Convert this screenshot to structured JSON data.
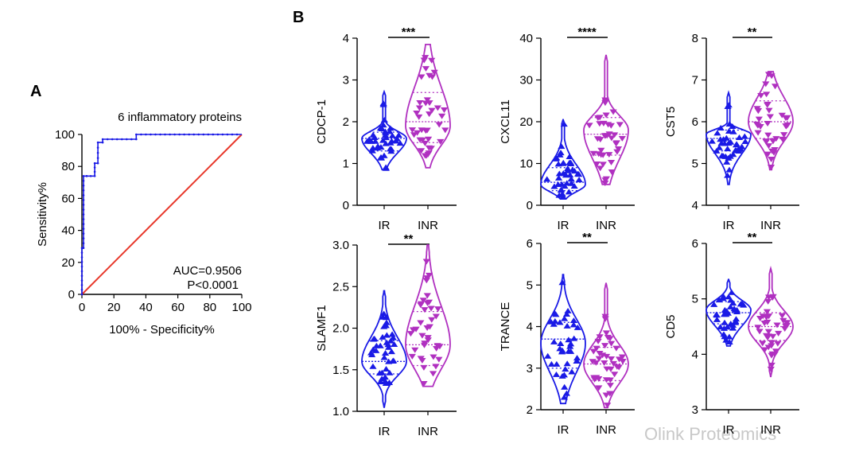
{
  "colors": {
    "ir": "#1a1ae6",
    "inr": "#b030c0",
    "reference": "#e8372a",
    "axis": "#000000",
    "watermark": "#c8c8c8"
  },
  "panel_a_label": "A",
  "panel_b_label": "B",
  "watermark": "Olink Proteomics",
  "chart_data": [
    {
      "type": "line",
      "panel": "A",
      "title": "6 inflammatory proteins",
      "xlabel": "100% - Specificity%",
      "ylabel": "Sensitivity%",
      "xlim": [
        0,
        100
      ],
      "ylim": [
        0,
        100
      ],
      "xticks": [
        "0",
        "20",
        "40",
        "60",
        "80",
        "100"
      ],
      "yticks": [
        "0",
        "20",
        "40",
        "60",
        "80",
        "100"
      ],
      "annotations": [
        "AUC=0.9506",
        "P<0.0001"
      ],
      "series": [
        {
          "name": "ROC",
          "color": "#1a1ae6",
          "x": [
            0,
            0,
            1,
            1,
            3,
            3,
            8,
            8,
            10,
            10,
            13,
            13,
            34,
            34,
            100
          ],
          "y": [
            0,
            29,
            29,
            74,
            74,
            74,
            74,
            82,
            82,
            95,
            95,
            97,
            97,
            100,
            100
          ]
        },
        {
          "name": "reference",
          "color": "#e8372a",
          "x": [
            0,
            100
          ],
          "y": [
            0,
            100
          ]
        }
      ]
    },
    {
      "type": "violin",
      "panel": "B",
      "ylabel": "CDCP-1",
      "ylim": [
        0,
        4
      ],
      "yticks": [
        "0",
        "1",
        "2",
        "3",
        "4"
      ],
      "categories": [
        "IR",
        "INR"
      ],
      "significance": "***",
      "groups": [
        {
          "name": "IR",
          "min": 0.85,
          "max": 2.72,
          "median": 1.6,
          "q1": 1.3,
          "q3": 1.75,
          "mode": 1.6
        },
        {
          "name": "INR",
          "min": 0.9,
          "max": 3.85,
          "median": 2.0,
          "q1": 1.5,
          "q3": 2.7,
          "mode": 1.9
        }
      ]
    },
    {
      "type": "violin",
      "panel": "B",
      "ylabel": "CXCL11",
      "ylim": [
        0,
        40
      ],
      "yticks": [
        "0",
        "10",
        "20",
        "30",
        "40"
      ],
      "categories": [
        "IR",
        "INR"
      ],
      "significance": "****",
      "groups": [
        {
          "name": "IR",
          "min": 1.5,
          "max": 20.5,
          "median": 5.5,
          "q1": 3.5,
          "q3": 9.0,
          "mode": 5.0
        },
        {
          "name": "INR",
          "min": 5.0,
          "max": 36.0,
          "median": 17.0,
          "q1": 12.0,
          "q3": 21.0,
          "mode": 18.0
        }
      ]
    },
    {
      "type": "violin",
      "panel": "B",
      "ylabel": "CST5",
      "ylim": [
        4,
        8
      ],
      "yticks": [
        "4",
        "5",
        "6",
        "7",
        "8"
      ],
      "categories": [
        "IR",
        "INR"
      ],
      "significance": "**",
      "groups": [
        {
          "name": "IR",
          "min": 4.5,
          "max": 6.7,
          "median": 5.6,
          "q1": 5.3,
          "q3": 5.8,
          "mode": 5.7
        },
        {
          "name": "INR",
          "min": 4.85,
          "max": 7.2,
          "median": 6.0,
          "q1": 5.6,
          "q3": 6.5,
          "mode": 6.0
        }
      ]
    },
    {
      "type": "violin",
      "panel": "B",
      "ylabel": "SLAMF1",
      "ylim": [
        1.0,
        3.0
      ],
      "yticks": [
        "1.0",
        "1.5",
        "2.0",
        "2.5",
        "3.0"
      ],
      "categories": [
        "IR",
        "INR"
      ],
      "significance": "**",
      "groups": [
        {
          "name": "IR",
          "min": 1.05,
          "max": 2.45,
          "median": 1.6,
          "q1": 1.45,
          "q3": 1.85,
          "mode": 1.6
        },
        {
          "name": "INR",
          "min": 1.3,
          "max": 3.0,
          "median": 1.8,
          "q1": 1.55,
          "q3": 2.2,
          "mode": 1.8
        }
      ]
    },
    {
      "type": "violin",
      "panel": "B",
      "ylabel": "TRANCE",
      "ylim": [
        2,
        6
      ],
      "yticks": [
        "2",
        "3",
        "4",
        "5",
        "6"
      ],
      "categories": [
        "IR",
        "INR"
      ],
      "significance": "**",
      "groups": [
        {
          "name": "IR",
          "min": 2.15,
          "max": 5.25,
          "median": 3.7,
          "q1": 3.0,
          "q3": 4.1,
          "mode": 3.6
        },
        {
          "name": "INR",
          "min": 2.05,
          "max": 5.05,
          "median": 3.1,
          "q1": 2.7,
          "q3": 3.5,
          "mode": 3.1
        }
      ]
    },
    {
      "type": "violin",
      "panel": "B",
      "ylabel": "CD5",
      "ylim": [
        3,
        6
      ],
      "yticks": [
        "3",
        "4",
        "5",
        "6"
      ],
      "categories": [
        "IR",
        "INR"
      ],
      "significance": "**",
      "groups": [
        {
          "name": "IR",
          "min": 4.15,
          "max": 5.35,
          "median": 4.75,
          "q1": 4.55,
          "q3": 4.95,
          "mode": 4.8
        },
        {
          "name": "INR",
          "min": 3.6,
          "max": 5.55,
          "median": 4.5,
          "q1": 4.25,
          "q3": 4.75,
          "mode": 4.5
        }
      ]
    }
  ]
}
